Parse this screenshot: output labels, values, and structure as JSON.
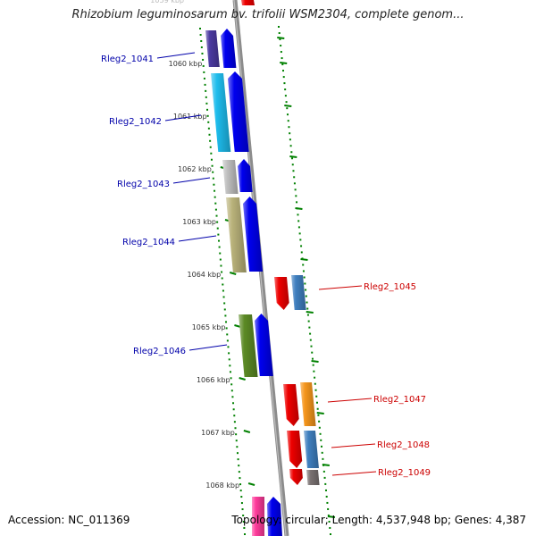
{
  "header": {
    "title": "Rhizobium leguminosarum bv. trifolii WSM2304, complete genom..."
  },
  "footer": {
    "accession": "Accession: NC_011369",
    "summary": "Topology: circular; Length: 4,537,948 bp; Genes: 4,387"
  },
  "colors": {
    "left_label": "#0000aa",
    "right_label": "#cc0000",
    "tick": "#008000",
    "backbone": "#8c8c8c"
  },
  "ruler": {
    "partial_top": "1059 kbp",
    "ticks": [
      "1060 kbp",
      "1061 kbp",
      "1062 kbp",
      "1063 kbp",
      "1064 kbp",
      "1065 kbp",
      "1066 kbp",
      "1067 kbp",
      "1068 kbp"
    ]
  },
  "genes": [
    {
      "locus": "Rleg2_1041",
      "strand": "+",
      "color": "#4b3aa0"
    },
    {
      "locus": "Rleg2_1042",
      "strand": "+",
      "color": "#1ebcec"
    },
    {
      "locus": "Rleg2_1043",
      "strand": "+",
      "color": "#c0c0c0"
    },
    {
      "locus": "Rleg2_1044",
      "strand": "+",
      "color": "#b9b27a"
    },
    {
      "locus": "Rleg2_1045",
      "strand": "-",
      "color": "#3f7fbf"
    },
    {
      "locus": "Rleg2_1046",
      "strand": "+",
      "color": "#5c8a25"
    },
    {
      "locus": "Rleg2_1047",
      "strand": "-",
      "color": "#f5961c"
    },
    {
      "locus": "Rleg2_1048",
      "strand": "-",
      "color": "#3f7fbf"
    },
    {
      "locus": "Rleg2_1049",
      "strand": "-",
      "color": "#7a7272"
    }
  ]
}
